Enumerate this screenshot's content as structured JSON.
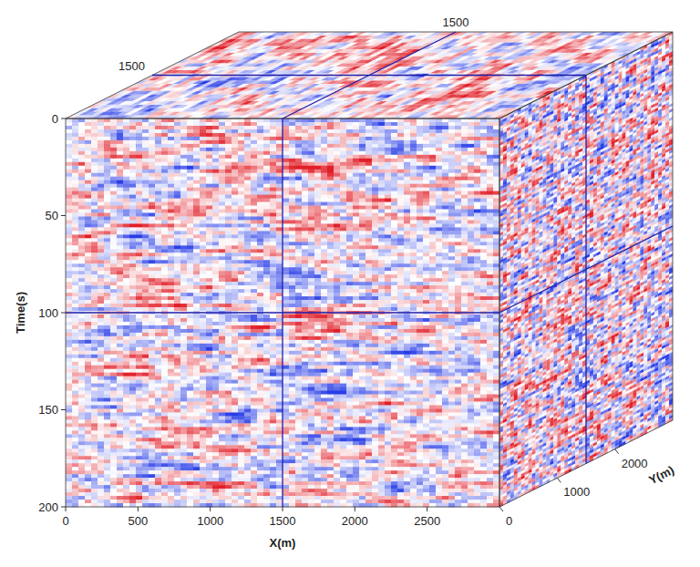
{
  "chart_data": {
    "type": "cube",
    "x_label": "X(m)",
    "y_label": "Y(m)",
    "time_label": "Time(s)",
    "xlim": [
      0,
      3000
    ],
    "xticks": [
      0,
      500,
      1000,
      1500,
      2000,
      2500
    ],
    "ylim": [
      0,
      3000
    ],
    "yticks": [
      0,
      1000,
      2000
    ],
    "tlim": [
      0,
      200
    ],
    "tticks": [
      0,
      50,
      100,
      150,
      200
    ],
    "slices": {
      "x": 1500,
      "y": 1500,
      "time": 100
    }
  }
}
